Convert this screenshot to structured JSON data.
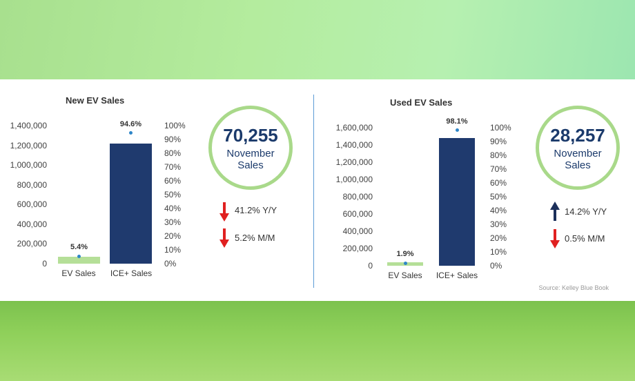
{
  "chart_data": [
    {
      "type": "bar",
      "title": "New EV Sales",
      "categories": [
        "EV Sales",
        "ICE+ Sales"
      ],
      "values": [
        70255,
        1220000
      ],
      "shares": [
        5.4,
        94.6
      ],
      "share_labels": [
        "5.4%",
        "94.6%"
      ],
      "ylim": [
        0,
        1400000
      ],
      "y_ticks": [
        "1,400,000",
        "1,200,000",
        "1,000,000",
        "800,000",
        "600,000",
        "400,000",
        "200,000",
        "0"
      ],
      "y2_ticks": [
        "100%",
        "90%",
        "80%",
        "70%",
        "60%",
        "50%",
        "40%",
        "30%",
        "20%",
        "10%",
        "0%"
      ],
      "colors": [
        "#b5df98",
        "#1f3a6e"
      ],
      "grid": false
    },
    {
      "type": "bar",
      "title": "Used EV Sales",
      "categories": [
        "EV Sales",
        "ICE+ Sales"
      ],
      "values": [
        28257,
        1480000
      ],
      "shares": [
        1.9,
        98.1
      ],
      "share_labels": [
        "1.9%",
        "98.1%"
      ],
      "ylim": [
        0,
        1600000
      ],
      "y_ticks": [
        "1,600,000",
        "1,400,000",
        "1,200,000",
        "1,000,000",
        "800,000",
        "600,000",
        "400,000",
        "200,000",
        "0"
      ],
      "y2_ticks": [
        "100%",
        "90%",
        "80%",
        "70%",
        "60%",
        "50%",
        "40%",
        "30%",
        "20%",
        "10%",
        "0%"
      ],
      "colors": [
        "#b5df98",
        "#1f3a6e"
      ],
      "grid": false
    }
  ],
  "new_summary": {
    "number": "70,255",
    "line1": "November",
    "line2": "Sales",
    "yy": {
      "text": "41.2% Y/Y",
      "direction": "down",
      "color": "#e02020"
    },
    "mm": {
      "text": "5.2% M/M",
      "direction": "down",
      "color": "#e02020"
    }
  },
  "used_summary": {
    "number": "28,257",
    "line1": "November",
    "line2": "Sales",
    "yy": {
      "text": "14.2% Y/Y",
      "direction": "up",
      "color": "#1b2f5a"
    },
    "mm": {
      "text": "0.5% M/M",
      "direction": "down",
      "color": "#e02020"
    }
  },
  "source": "Source: Kelley Blue Book",
  "accent_colors": {
    "ring": "#a9d98a",
    "divider": "#5b9bd5",
    "dot": "#2e86c8"
  }
}
